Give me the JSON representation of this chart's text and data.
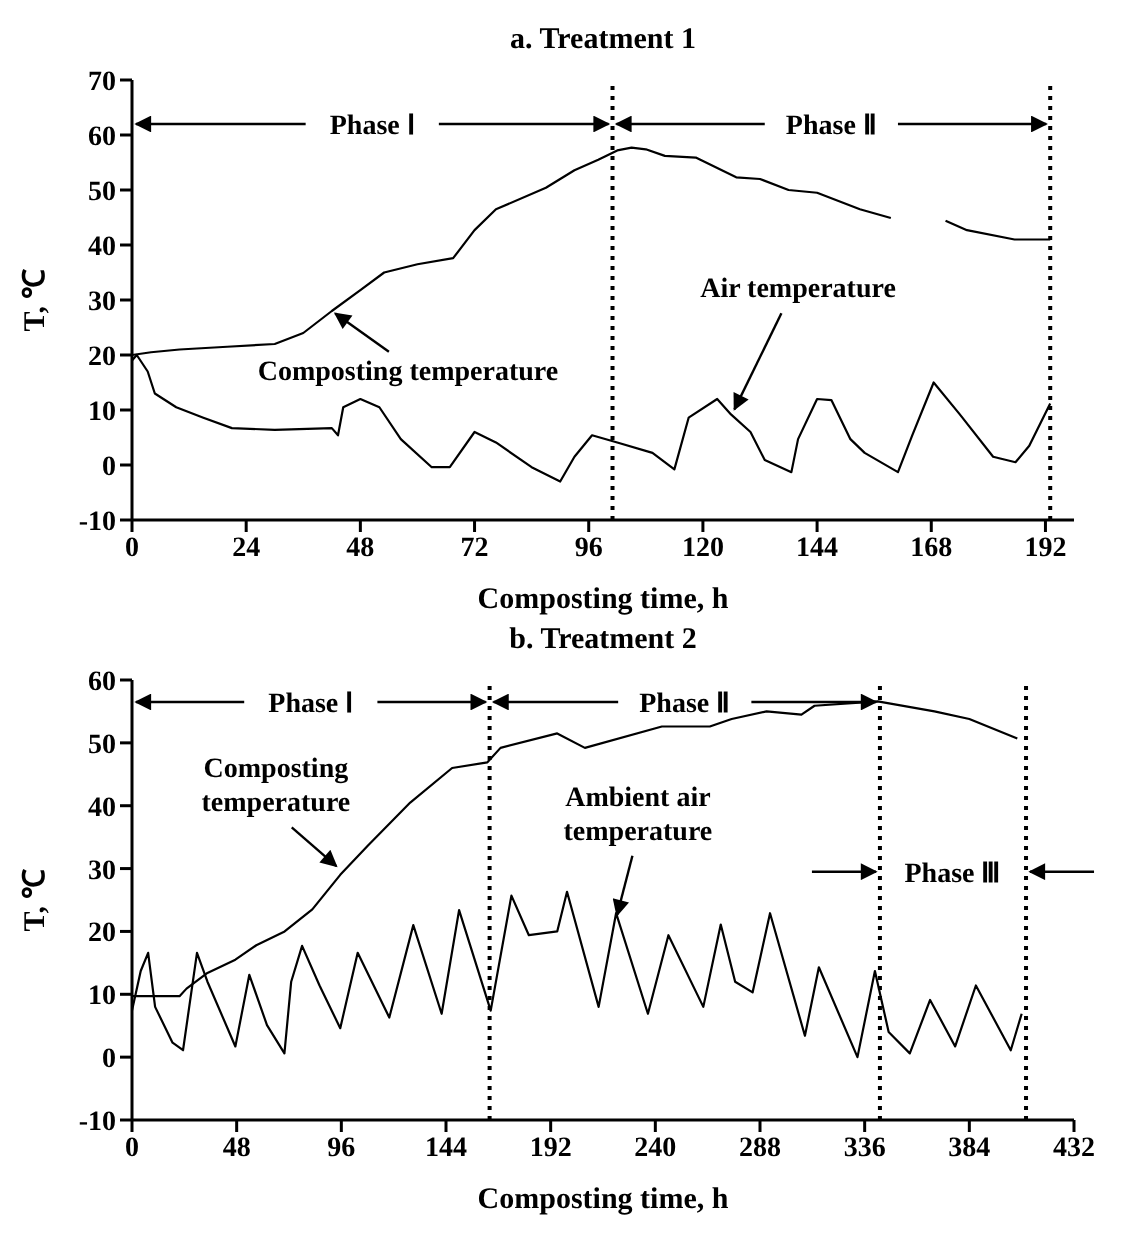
{
  "chart_data": [
    {
      "type": "line",
      "title": "a. Treatment 1",
      "xlabel": "Composting time, h",
      "ylabel": "T, ℃",
      "xlim": [
        0,
        198
      ],
      "xticks": [
        0,
        24,
        48,
        72,
        96,
        120,
        144,
        168,
        192
      ],
      "ylim": [
        -10,
        70
      ],
      "yticks": [
        -10,
        0,
        10,
        20,
        30,
        40,
        50,
        60,
        70
      ],
      "series": [
        {
          "color": "#000000",
          "x": [
            0,
            4,
            10,
            20,
            30,
            36,
            42,
            48,
            53,
            60,
            67.5,
            72,
            76.5,
            87,
            93,
            98,
            102,
            105,
            108,
            112,
            118.5,
            127,
            132,
            138,
            144,
            153,
            159.5,
            165,
            171,
            175.5,
            185.5,
            193
          ],
          "values": [
            20,
            20.5,
            21,
            21.5,
            22,
            24,
            28,
            31.8,
            35,
            36.5,
            37.6,
            42.7,
            46.5,
            50.4,
            53.6,
            55.5,
            57.2,
            57.7,
            57.4,
            56.2,
            55.9,
            52.3,
            52,
            50,
            49.5,
            46.5,
            44.9,
            null,
            44.4,
            42.7,
            41,
            41
          ]
        },
        {
          "color": "#000000",
          "x": [
            0,
            1,
            3.3,
            4.8,
            9.3,
            15,
            21,
            30,
            42,
            43.3,
            44.4,
            48,
            52,
            56.5,
            63,
            66.8,
            72,
            76.5,
            84,
            90,
            93,
            96.7,
            102,
            109.4,
            114,
            117,
            123,
            125.9,
            130,
            133,
            138.6,
            140,
            144,
            147,
            151,
            154,
            161,
            164,
            168.5,
            174,
            181,
            185.7,
            188.6,
            193
          ],
          "values": [
            19,
            20,
            17,
            13,
            10.5,
            8.6,
            6.7,
            6.4,
            6.7,
            5.4,
            10.5,
            12,
            10.5,
            4.7,
            -0.4,
            -0.4,
            6,
            4.1,
            -0.4,
            -3,
            1.5,
            5.4,
            4.1,
            2.2,
            -0.8,
            8.6,
            12,
            9.2,
            6,
            0.9,
            -1.3,
            4.7,
            12,
            11.8,
            4.7,
            2.2,
            -1.3,
            5.4,
            15,
            9.2,
            1.5,
            0.5,
            3.5,
            11.2
          ]
        }
      ],
      "ref_lines": [
        {
          "axis": "x",
          "value": 101,
          "line_style": "dotted"
        },
        {
          "axis": "x",
          "value": 193,
          "line_style": "dotted"
        }
      ],
      "annotations": [
        {
          "text": "Phase Ⅰ",
          "x": 101,
          "y": 62
        },
        {
          "text": "Phase Ⅱ",
          "x": 193,
          "y": 62
        },
        {
          "text": "Composting temperature",
          "x": 42,
          "y": 28
        },
        {
          "text": "Air temperature",
          "x": 126,
          "y": 9
        }
      ]
    },
    {
      "type": "line",
      "title": "b. Treatment 2",
      "xlabel": "Composting time, h",
      "ylabel": "T, ℃",
      "xlim": [
        0,
        432
      ],
      "xticks": [
        0,
        48,
        96,
        144,
        192,
        240,
        288,
        336,
        384,
        432
      ],
      "ylim": [
        -10,
        60
      ],
      "yticks": [
        -10,
        0,
        10,
        20,
        30,
        40,
        50,
        60
      ],
      "series": [
        {
          "color": "#000000",
          "x": [
            0,
            21.8,
            25,
            34.6,
            47.4,
            57,
            70,
            82.7,
            95.5,
            108,
            127.6,
            146.8,
            163,
            169,
            195,
            207.7,
            243,
            265,
            275,
            291,
            307,
            313,
            342,
            368,
            384,
            406
          ],
          "values": [
            9.7,
            9.7,
            10.9,
            13.4,
            15.5,
            17.8,
            20,
            23.5,
            29,
            33.6,
            40.5,
            46,
            46.9,
            49.2,
            51.5,
            49.2,
            52.6,
            52.6,
            53.8,
            55,
            54.5,
            55.9,
            56.6,
            55,
            53.8,
            50.7
          ]
        },
        {
          "color": "#000000",
          "x": [
            0,
            4,
            7.4,
            10.6,
            18.6,
            23.4,
            29.8,
            34.6,
            47.4,
            53.8,
            61.9,
            69.9,
            73,
            78,
            86,
            95.5,
            103.5,
            118,
            129,
            142,
            150,
            164.5,
            174,
            182,
            195,
            199.5,
            214,
            222,
            236.6,
            246,
            262,
            270,
            276.6,
            284.6,
            292.6,
            308.6,
            315,
            332.7,
            340.7,
            347,
            356.7,
            366,
            377.5,
            387,
            403,
            408
          ],
          "values": [
            7.4,
            13.7,
            16.6,
            8,
            2.3,
            1.1,
            16.6,
            12,
            1.7,
            13.1,
            5.1,
            0.6,
            12,
            17.7,
            11.4,
            4.6,
            16.6,
            6.3,
            21,
            6.9,
            23.4,
            7.4,
            25.7,
            19.4,
            20,
            26.3,
            8,
            22.9,
            6.9,
            19.4,
            8,
            21.1,
            12,
            10.3,
            22.9,
            3.4,
            14.3,
            0,
            13.7,
            4,
            0.6,
            9.1,
            1.7,
            11.4,
            1.1,
            6.9
          ]
        }
      ],
      "ref_lines": [
        {
          "axis": "x",
          "value": 164,
          "line_style": "dotted"
        },
        {
          "axis": "x",
          "value": 343,
          "line_style": "dotted"
        },
        {
          "axis": "x",
          "value": 410,
          "line_style": "dotted"
        }
      ],
      "annotations": [
        {
          "text": "Phase Ⅰ",
          "x": 164,
          "y": 56.5
        },
        {
          "text": "Phase Ⅱ",
          "x": 343,
          "y": 56.5
        },
        {
          "text": "Phase Ⅲ",
          "x": 410,
          "y": 29.5
        },
        {
          "text": "Composting temperature",
          "x": 95,
          "y": 30
        },
        {
          "text": "Ambient air temperature",
          "x": 222,
          "y": 22
        }
      ]
    }
  ]
}
